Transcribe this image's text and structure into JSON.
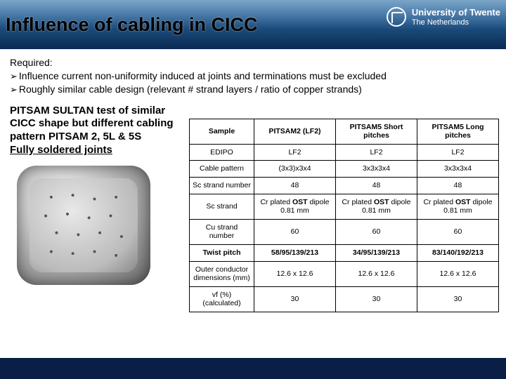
{
  "header": {
    "title": "Influence of cabling in CICC",
    "university_name": "University of Twente",
    "university_sub": "The Netherlands"
  },
  "required": {
    "label": "Required:",
    "points": [
      "Influence current non-uniformity induced at joints and terminations must be excluded",
      "Roughly similar cable design (relevant # strand layers / ratio of copper strands)"
    ]
  },
  "caption": {
    "line1": "PITSAM SULTAN test of similar CICC shape but different cabling pattern PITSAM 2, 5L & 5S",
    "line2": "Fully soldered joints"
  },
  "table": {
    "columns": [
      "Sample",
      "PITSAM2 (LF2)",
      "PITSAM5 Short pitches",
      "PITSAM5 Long pitches"
    ],
    "rows": [
      {
        "label": "EDIPO",
        "bold": false,
        "cells": [
          "LF2",
          "LF2",
          "LF2"
        ]
      },
      {
        "label": "Cable pattern",
        "bold": false,
        "cells": [
          "(3x3)x3x4",
          "3x3x3x4",
          "3x3x3x4"
        ]
      },
      {
        "label": "Sc strand number",
        "bold": false,
        "cells": [
          "48",
          "48",
          "48"
        ]
      },
      {
        "label": "Sc strand",
        "bold": false,
        "cells_html": [
          "Cr plated <b>OST</b> dipole 0.81 mm",
          "Cr plated <b>OST</b> dipole 0.81 mm",
          "Cr plated <b>OST</b> dipole 0.81 mm"
        ]
      },
      {
        "label": "Cu strand number",
        "bold": false,
        "cells": [
          "60",
          "60",
          "60"
        ]
      },
      {
        "label": "Twist pitch",
        "bold": true,
        "cells_bold": [
          "58/95/139/213",
          "34/95/139/213",
          "83/140/192/213"
        ]
      },
      {
        "label": "Outer conductor dimensions (mm)",
        "bold": false,
        "cells": [
          "12.6 x 12.6",
          "12.6 x 12.6",
          "12.6 x 12.6"
        ]
      },
      {
        "label": "vf (%) (calculated)",
        "bold": false,
        "cells": [
          "30",
          "30",
          "30"
        ]
      }
    ]
  }
}
